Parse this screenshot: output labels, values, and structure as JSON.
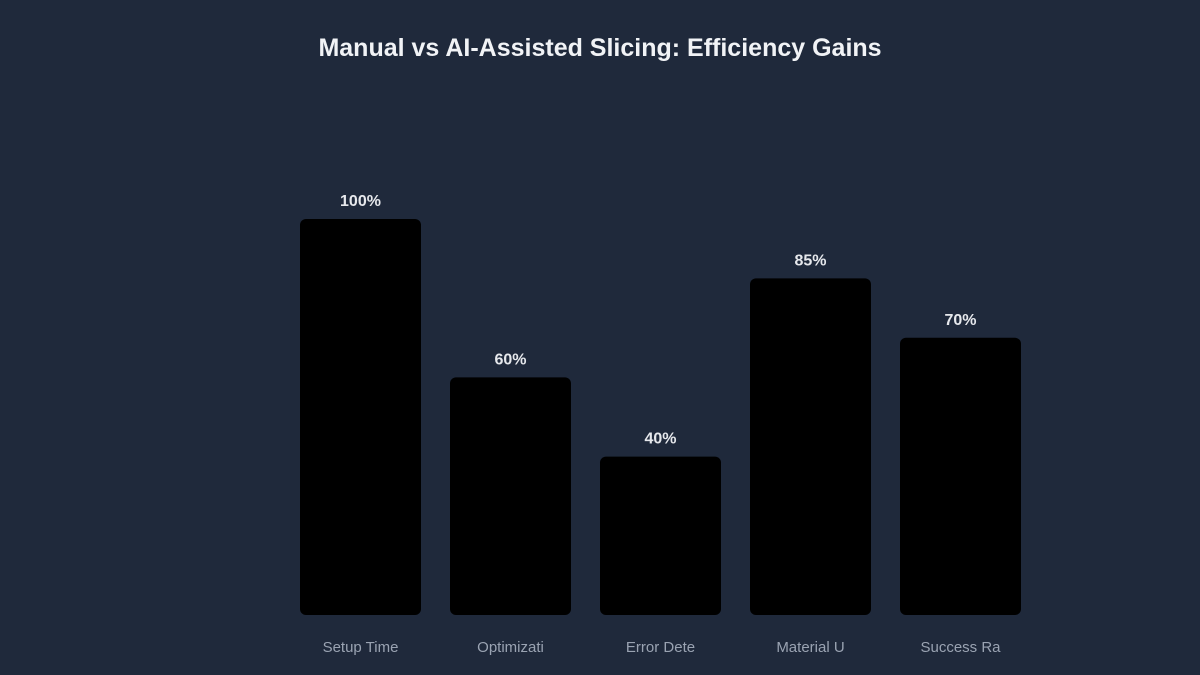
{
  "chart_data": {
    "type": "bar",
    "title": "Manual vs AI-Assisted Slicing: Efficiency Gains",
    "categories": [
      "Setup Time",
      "Optimizati",
      "Error Dete",
      "Material U",
      "Success Ra"
    ],
    "values": [
      100,
      60,
      40,
      85,
      70
    ],
    "data_labels": [
      "100%",
      "60%",
      "40%",
      "85%",
      "70%"
    ],
    "xlabel": "",
    "ylabel": "",
    "ylim": [
      0,
      100
    ],
    "grid": false,
    "colors": {
      "bar": "#000000",
      "background": "#1f293b",
      "title": "#f1f3f6",
      "tick": "#9aa3b2"
    }
  }
}
